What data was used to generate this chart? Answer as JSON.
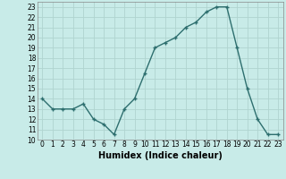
{
  "x": [
    0,
    1,
    2,
    3,
    4,
    5,
    6,
    7,
    8,
    9,
    10,
    11,
    12,
    13,
    14,
    15,
    16,
    17,
    18,
    19,
    20,
    21,
    22,
    23
  ],
  "y": [
    14,
    13,
    13,
    13,
    13.5,
    12,
    11.5,
    10.5,
    13,
    14,
    16.5,
    19,
    19.5,
    20,
    21,
    21.5,
    22.5,
    23,
    23,
    19,
    15,
    12,
    10.5,
    10.5
  ],
  "line_color": "#2d6e6e",
  "marker": "+",
  "marker_size": 3.5,
  "bg_color": "#c8ebe8",
  "grid_color": "#b0d4d0",
  "xlabel": "Humidex (Indice chaleur)",
  "xlim": [
    -0.5,
    23.5
  ],
  "ylim": [
    10,
    23.5
  ],
  "yticks": [
    10,
    11,
    12,
    13,
    14,
    15,
    16,
    17,
    18,
    19,
    20,
    21,
    22,
    23
  ],
  "xticks": [
    0,
    1,
    2,
    3,
    4,
    5,
    6,
    7,
    8,
    9,
    10,
    11,
    12,
    13,
    14,
    15,
    16,
    17,
    18,
    19,
    20,
    21,
    22,
    23
  ],
  "xlabel_fontsize": 7,
  "tick_fontsize": 5.5,
  "linewidth": 1.0,
  "marker_linewidth": 1.0
}
